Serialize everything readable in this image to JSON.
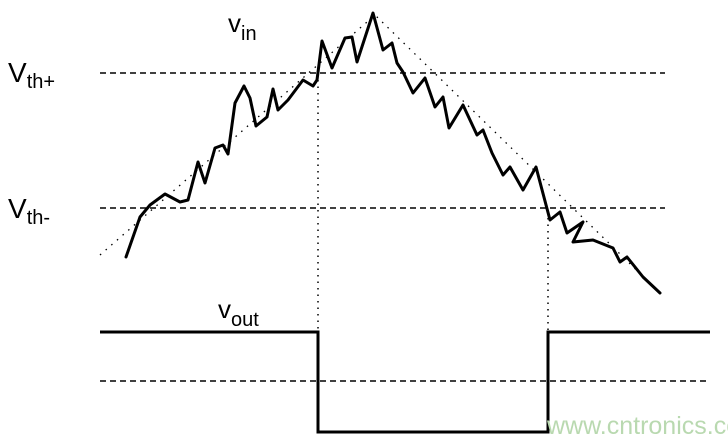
{
  "labels": {
    "vin_main": "v",
    "vin_sub": "in",
    "vout_main": "v",
    "vout_sub": "out",
    "vth_plus_main": "V",
    "vth_plus_sub": "th+",
    "vth_minus_main": "V",
    "vth_minus_sub": "th-"
  },
  "watermark": "www.cntronics.com",
  "colors": {
    "line": "#000000",
    "watermark": "#b9d9b0"
  }
}
